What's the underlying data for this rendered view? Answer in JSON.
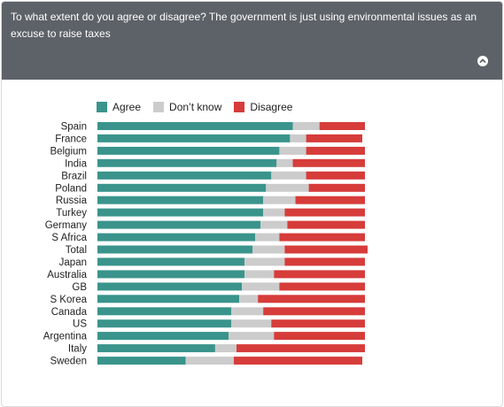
{
  "question": "To what extent do you agree or disagree? The government is just using environmental issues as an excuse to raise taxes",
  "collapse_icon": "chevron-up-icon",
  "colors": {
    "header": "#5d6268",
    "agree": "#3a948b",
    "dont_know": "#cccccc",
    "disagree": "#d63c3a"
  },
  "legend": [
    {
      "label": "Agree",
      "color": "#3a948b"
    },
    {
      "label": "Don’t know",
      "color": "#cccccc"
    },
    {
      "label": "Disagree",
      "color": "#d63c3a"
    }
  ],
  "chart_data": {
    "type": "bar",
    "orientation": "horizontal",
    "stacked": true,
    "categories": [
      "Spain",
      "France",
      "Belgium",
      "India",
      "Brazil",
      "Poland",
      "Russia",
      "Turkey",
      "Germany",
      "S Africa",
      "Total",
      "Japan",
      "Australia",
      "GB",
      "S Korea",
      "Canada",
      "US",
      "Argentina",
      "Italy",
      "Sweden"
    ],
    "series": [
      {
        "name": "Agree",
        "values": [
          73,
          72,
          68,
          67,
          65,
          63,
          62,
          62,
          61,
          59,
          58,
          55,
          55,
          54,
          53,
          50,
          50,
          49,
          44,
          33
        ]
      },
      {
        "name": "Don’t know",
        "values": [
          10,
          6,
          10,
          6,
          13,
          16,
          12,
          8,
          10,
          9,
          12,
          15,
          11,
          14,
          7,
          12,
          15,
          17,
          8,
          18
        ]
      },
      {
        "name": "Disagree",
        "values": [
          17,
          21,
          22,
          27,
          22,
          21,
          26,
          30,
          29,
          32,
          31,
          30,
          34,
          32,
          40,
          38,
          35,
          34,
          48,
          48
        ]
      }
    ]
  }
}
